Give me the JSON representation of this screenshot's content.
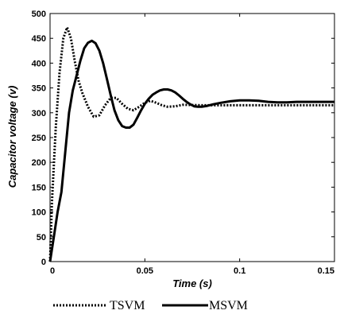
{
  "chart_data": {
    "type": "line",
    "xlabel": "Time (s)",
    "ylabel": "Capacitor voltage (v)",
    "xlim": [
      0,
      0.15
    ],
    "ylim": [
      0,
      500
    ],
    "x_ticks": [
      0,
      0.05,
      0.1,
      0.15
    ],
    "x_tick_labels": [
      "0",
      "0.05",
      "0.1",
      "0.15"
    ],
    "y_ticks": [
      0,
      50,
      100,
      150,
      200,
      250,
      300,
      350,
      400,
      450,
      500
    ],
    "y_tick_labels": [
      "0",
      "50",
      "100",
      "150",
      "200",
      "250",
      "300",
      "350",
      "400",
      "450",
      "500"
    ],
    "grid": false,
    "legend_position": "bottom",
    "series": [
      {
        "name": "TSVM",
        "style": "dotted",
        "color": "#000000",
        "points": [
          [
            0,
            0
          ],
          [
            0.001,
            120
          ],
          [
            0.003,
            270
          ],
          [
            0.005,
            380
          ],
          [
            0.007,
            450
          ],
          [
            0.009,
            472
          ],
          [
            0.011,
            450
          ],
          [
            0.013,
            405
          ],
          [
            0.015,
            365
          ],
          [
            0.017,
            340
          ],
          [
            0.02,
            312
          ],
          [
            0.023,
            292
          ],
          [
            0.026,
            295
          ],
          [
            0.029,
            315
          ],
          [
            0.032,
            330
          ],
          [
            0.035,
            330
          ],
          [
            0.038,
            318
          ],
          [
            0.041,
            308
          ],
          [
            0.044,
            305
          ],
          [
            0.047,
            312
          ],
          [
            0.05,
            320
          ],
          [
            0.053,
            324
          ],
          [
            0.056,
            320
          ],
          [
            0.059,
            315
          ],
          [
            0.062,
            312
          ],
          [
            0.066,
            313
          ],
          [
            0.07,
            316
          ],
          [
            0.08,
            315
          ],
          [
            0.1,
            315
          ],
          [
            0.12,
            315
          ],
          [
            0.15,
            315
          ]
        ]
      },
      {
        "name": "MSVM",
        "style": "solid",
        "color": "#000000",
        "points": [
          [
            0,
            0
          ],
          [
            0.002,
            50
          ],
          [
            0.004,
            100
          ],
          [
            0.006,
            140
          ],
          [
            0.008,
            220
          ],
          [
            0.01,
            300
          ],
          [
            0.012,
            345
          ],
          [
            0.014,
            375
          ],
          [
            0.016,
            405
          ],
          [
            0.018,
            430
          ],
          [
            0.02,
            441
          ],
          [
            0.022,
            445
          ],
          [
            0.024,
            440
          ],
          [
            0.026,
            425
          ],
          [
            0.028,
            400
          ],
          [
            0.03,
            368
          ],
          [
            0.032,
            335
          ],
          [
            0.034,
            305
          ],
          [
            0.036,
            285
          ],
          [
            0.038,
            273
          ],
          [
            0.04,
            270
          ],
          [
            0.042,
            270
          ],
          [
            0.044,
            276
          ],
          [
            0.046,
            290
          ],
          [
            0.048,
            305
          ],
          [
            0.05,
            318
          ],
          [
            0.052,
            328
          ],
          [
            0.054,
            336
          ],
          [
            0.056,
            341
          ],
          [
            0.058,
            345
          ],
          [
            0.06,
            347
          ],
          [
            0.062,
            347
          ],
          [
            0.064,
            345
          ],
          [
            0.066,
            341
          ],
          [
            0.068,
            335
          ],
          [
            0.07,
            328
          ],
          [
            0.072,
            322
          ],
          [
            0.074,
            317
          ],
          [
            0.076,
            313
          ],
          [
            0.078,
            312
          ],
          [
            0.08,
            312
          ],
          [
            0.083,
            314
          ],
          [
            0.086,
            317
          ],
          [
            0.09,
            320
          ],
          [
            0.095,
            323
          ],
          [
            0.1,
            325
          ],
          [
            0.105,
            325
          ],
          [
            0.11,
            324
          ],
          [
            0.115,
            322
          ],
          [
            0.12,
            321
          ],
          [
            0.125,
            321
          ],
          [
            0.13,
            322
          ],
          [
            0.14,
            322
          ],
          [
            0.15,
            322
          ]
        ]
      }
    ]
  }
}
